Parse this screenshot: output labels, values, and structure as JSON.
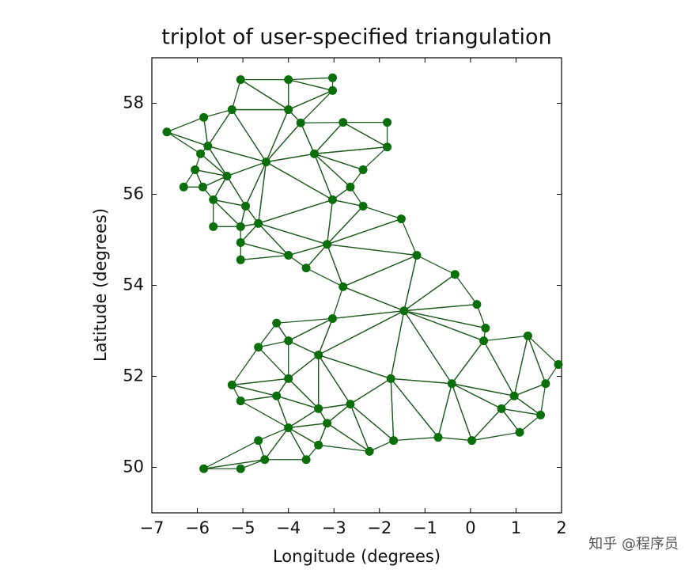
{
  "chart_data": {
    "type": "triplot",
    "title": "triplot of user-specified triangulation",
    "xlabel": "Longitude (degrees)",
    "ylabel": "Latitude (degrees)",
    "x": [
      -5.05,
      -4.0,
      -3.03,
      -3.03,
      -5.24,
      -4.0,
      -5.86,
      -6.67,
      -5.77,
      -5.93,
      -3.73,
      -2.8,
      -1.83,
      -1.83,
      -4.49,
      -3.43,
      -2.36,
      -6.05,
      -5.35,
      -6.3,
      -5.88,
      -2.64,
      -5.65,
      -4.94,
      -3.03,
      -2.36,
      -1.52,
      -5.65,
      -5.05,
      -4.66,
      -5.05,
      -3.15,
      -5.05,
      -4.0,
      -1.18,
      -3.61,
      -0.34,
      -2.8,
      0.14,
      -1.46,
      0.33,
      -4.26,
      -3.03,
      0.29,
      1.26,
      -4.0,
      -4.66,
      1.93,
      -3.34,
      -1.75,
      -4.0,
      1.65,
      -0.41,
      -5.24,
      0.96,
      -4.26,
      -5.05,
      -2.64,
      0.68,
      -3.34,
      1.54,
      -3.15,
      -4.0,
      1.08,
      -4.66,
      -1.69,
      -0.71,
      0.03,
      -3.34,
      -2.22,
      -4.52,
      -3.61,
      -5.86,
      -5.05
    ],
    "y": [
      58.52,
      58.52,
      58.56,
      58.28,
      57.86,
      57.86,
      57.69,
      57.37,
      57.06,
      56.89,
      57.57,
      57.58,
      57.58,
      57.04,
      56.71,
      56.89,
      56.54,
      56.54,
      56.4,
      56.16,
      56.16,
      56.16,
      55.88,
      55.74,
      55.88,
      55.74,
      55.46,
      55.29,
      55.29,
      55.36,
      54.94,
      54.9,
      54.56,
      54.66,
      54.66,
      54.38,
      54.24,
      53.97,
      53.58,
      53.44,
      53.06,
      53.17,
      53.27,
      52.78,
      52.89,
      52.78,
      52.64,
      52.26,
      52.47,
      51.95,
      51.95,
      51.84,
      51.84,
      51.81,
      51.57,
      51.57,
      51.46,
      51.39,
      51.29,
      51.29,
      51.15,
      50.97,
      50.87,
      50.77,
      50.59,
      50.59,
      50.66,
      50.59,
      50.49,
      50.35,
      50.17,
      50.17,
      49.97,
      49.97
    ],
    "triangles": [
      [
        0,
        1,
        5
      ],
      [
        0,
        4,
        5
      ],
      [
        1,
        2,
        3
      ],
      [
        1,
        3,
        5
      ],
      [
        3,
        5,
        10
      ],
      [
        5,
        10,
        14
      ],
      [
        4,
        5,
        14
      ],
      [
        4,
        6,
        8
      ],
      [
        4,
        8,
        14
      ],
      [
        6,
        7,
        8
      ],
      [
        7,
        8,
        9
      ],
      [
        8,
        9,
        18
      ],
      [
        8,
        14,
        18
      ],
      [
        9,
        17,
        18
      ],
      [
        17,
        19,
        20
      ],
      [
        17,
        20,
        18
      ],
      [
        20,
        22,
        18
      ],
      [
        18,
        22,
        23
      ],
      [
        18,
        23,
        14
      ],
      [
        14,
        23,
        29
      ],
      [
        22,
        27,
        28
      ],
      [
        22,
        28,
        23
      ],
      [
        23,
        28,
        29
      ],
      [
        28,
        29,
        30
      ],
      [
        29,
        30,
        33
      ],
      [
        30,
        32,
        33
      ],
      [
        14,
        29,
        24
      ],
      [
        14,
        24,
        15
      ],
      [
        10,
        14,
        15
      ],
      [
        10,
        11,
        15
      ],
      [
        11,
        12,
        13
      ],
      [
        11,
        13,
        15
      ],
      [
        13,
        15,
        16
      ],
      [
        15,
        16,
        21
      ],
      [
        15,
        21,
        24
      ],
      [
        21,
        24,
        25
      ],
      [
        24,
        25,
        31
      ],
      [
        25,
        26,
        31
      ],
      [
        24,
        29,
        31
      ],
      [
        29,
        31,
        33
      ],
      [
        31,
        33,
        35
      ],
      [
        31,
        35,
        37
      ],
      [
        31,
        34,
        37
      ],
      [
        26,
        31,
        34
      ],
      [
        34,
        37,
        39
      ],
      [
        34,
        36,
        39
      ],
      [
        36,
        38,
        39
      ],
      [
        38,
        39,
        40
      ],
      [
        39,
        40,
        43
      ],
      [
        37,
        42,
        39
      ],
      [
        41,
        42,
        45
      ],
      [
        45,
        46,
        41
      ],
      [
        42,
        45,
        48
      ],
      [
        42,
        48,
        39
      ],
      [
        39,
        48,
        49
      ],
      [
        39,
        43,
        52
      ],
      [
        39,
        49,
        52
      ],
      [
        43,
        52,
        54
      ],
      [
        43,
        44,
        54
      ],
      [
        44,
        47,
        51
      ],
      [
        44,
        51,
        54
      ],
      [
        51,
        54,
        60
      ],
      [
        54,
        58,
        60
      ],
      [
        58,
        60,
        63
      ],
      [
        52,
        54,
        58
      ],
      [
        52,
        58,
        67
      ],
      [
        58,
        63,
        67
      ],
      [
        52,
        66,
        67
      ],
      [
        49,
        52,
        66
      ],
      [
        49,
        65,
        66
      ],
      [
        49,
        57,
        65
      ],
      [
        48,
        49,
        57
      ],
      [
        48,
        57,
        59
      ],
      [
        45,
        48,
        50
      ],
      [
        48,
        50,
        59
      ],
      [
        50,
        55,
        59
      ],
      [
        50,
        53,
        55
      ],
      [
        46,
        50,
        53
      ],
      [
        53,
        55,
        56
      ],
      [
        55,
        59,
        62
      ],
      [
        55,
        56,
        62
      ],
      [
        59,
        61,
        62
      ],
      [
        57,
        59,
        61
      ],
      [
        57,
        61,
        69
      ],
      [
        57,
        65,
        69
      ],
      [
        61,
        68,
        69
      ],
      [
        61,
        62,
        68
      ],
      [
        62,
        64,
        70
      ],
      [
        62,
        68,
        71
      ],
      [
        62,
        70,
        71
      ],
      [
        64,
        70,
        72
      ],
      [
        70,
        72,
        73
      ]
    ],
    "point_color": "#0a6e0a",
    "edge_color": "#1f5a1f",
    "xlim": [
      -7,
      2
    ],
    "ylim": [
      49,
      59
    ],
    "xticks": [
      {
        "value": -7,
        "label": "−7"
      },
      {
        "value": -6,
        "label": "−6"
      },
      {
        "value": -5,
        "label": "−5"
      },
      {
        "value": -4,
        "label": "−4"
      },
      {
        "value": -3,
        "label": "−3"
      },
      {
        "value": -2,
        "label": "−2"
      },
      {
        "value": -1,
        "label": "−1"
      },
      0,
      1,
      2
    ],
    "yticks": [
      50,
      52,
      54,
      56,
      58
    ]
  },
  "watermark": "知乎 @程序员"
}
